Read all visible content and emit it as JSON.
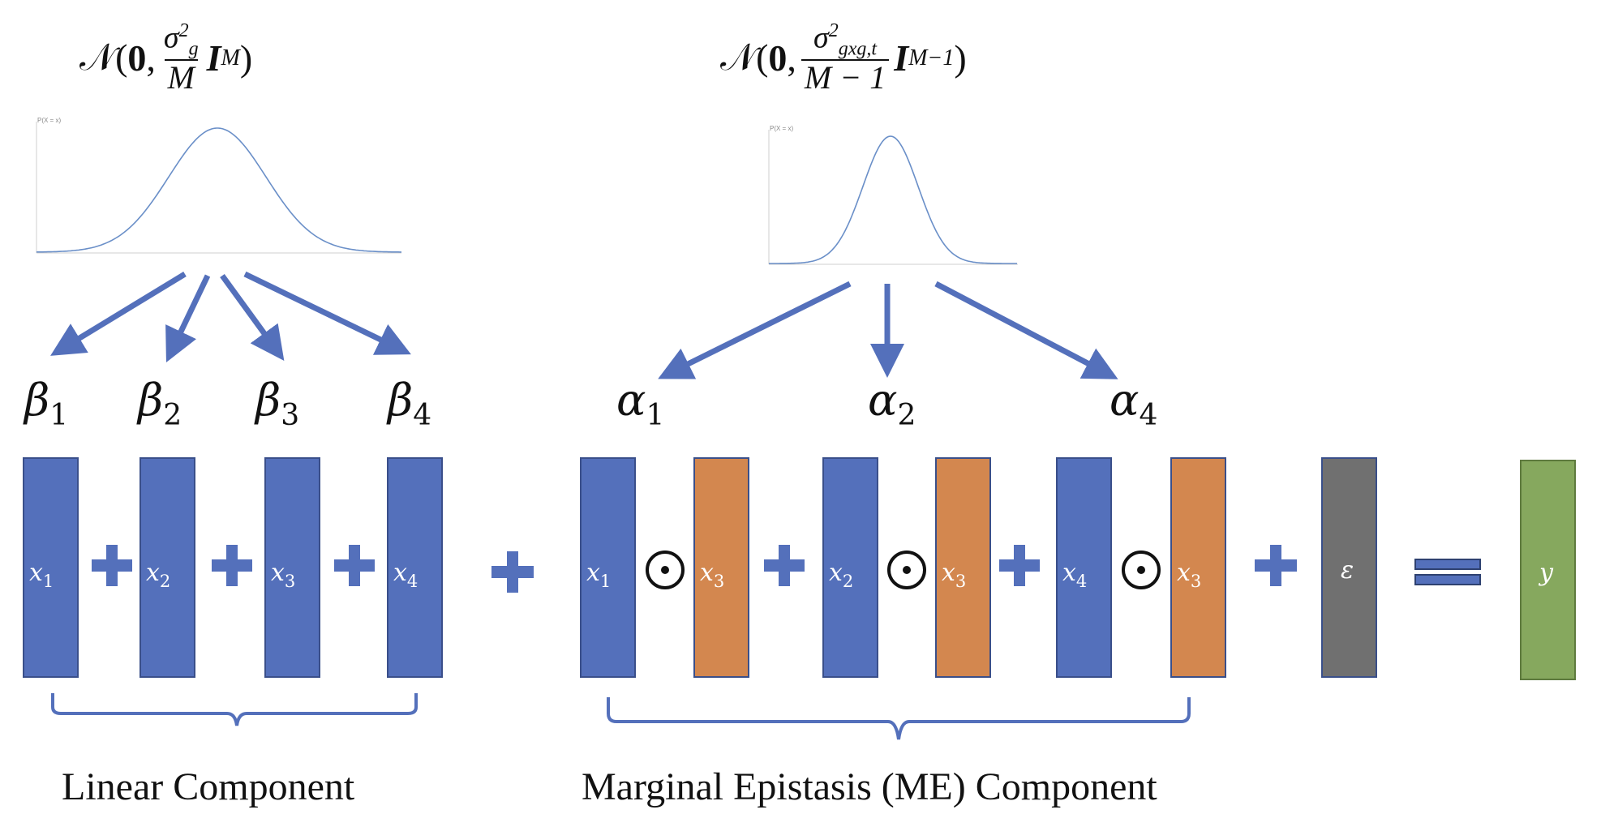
{
  "formulas": {
    "left": {
      "prefix": "𝒩(",
      "mean": "0",
      "sep": ",",
      "num_base": "σ",
      "num_sup": "2",
      "num_sub": "g",
      "den": "M",
      "identity": "I",
      "identity_sub": "M",
      "suffix": ")"
    },
    "right": {
      "prefix": "𝒩(",
      "mean": "0",
      "sep": ",",
      "num_base": "σ",
      "num_sup": "2",
      "num_sub": "gxg,t",
      "den": "M − 1",
      "identity": "I",
      "identity_sub": "M−1",
      "suffix": ")"
    }
  },
  "plots": {
    "left_axis_label": "P(X = x)",
    "right_axis_label": "P(X = x)"
  },
  "coefficients": {
    "beta": [
      {
        "symbol": "β",
        "sub": "1"
      },
      {
        "symbol": "β",
        "sub": "2"
      },
      {
        "symbol": "β",
        "sub": "3"
      },
      {
        "symbol": "β",
        "sub": "4"
      }
    ],
    "alpha": [
      {
        "symbol": "α",
        "sub": "1"
      },
      {
        "symbol": "α",
        "sub": "2"
      },
      {
        "symbol": "α",
        "sub": "4"
      }
    ]
  },
  "columns": {
    "linear": [
      {
        "var": "x",
        "sub": "1"
      },
      {
        "var": "x",
        "sub": "2"
      },
      {
        "var": "x",
        "sub": "3"
      },
      {
        "var": "x",
        "sub": "4"
      }
    ],
    "epistasis": [
      {
        "a": {
          "var": "x",
          "sub": "1"
        },
        "b": {
          "var": "x",
          "sub": "3"
        }
      },
      {
        "a": {
          "var": "x",
          "sub": "2"
        },
        "b": {
          "var": "x",
          "sub": "3"
        }
      },
      {
        "a": {
          "var": "x",
          "sub": "4"
        },
        "b": {
          "var": "x",
          "sub": "3"
        }
      }
    ],
    "error": "ε",
    "output": "y"
  },
  "operators": {
    "product_symbol": "⊙"
  },
  "labels": {
    "linear": "Linear Component",
    "epistasis": "Marginal Epistasis (ME) Component"
  },
  "colors": {
    "genotype": "#5470bb",
    "interaction": "#d3874f",
    "error": "#707070",
    "output": "#86a85e",
    "arrow": "#5470bb",
    "bracket": "#5470bb",
    "curve": "#6a8fc8"
  }
}
